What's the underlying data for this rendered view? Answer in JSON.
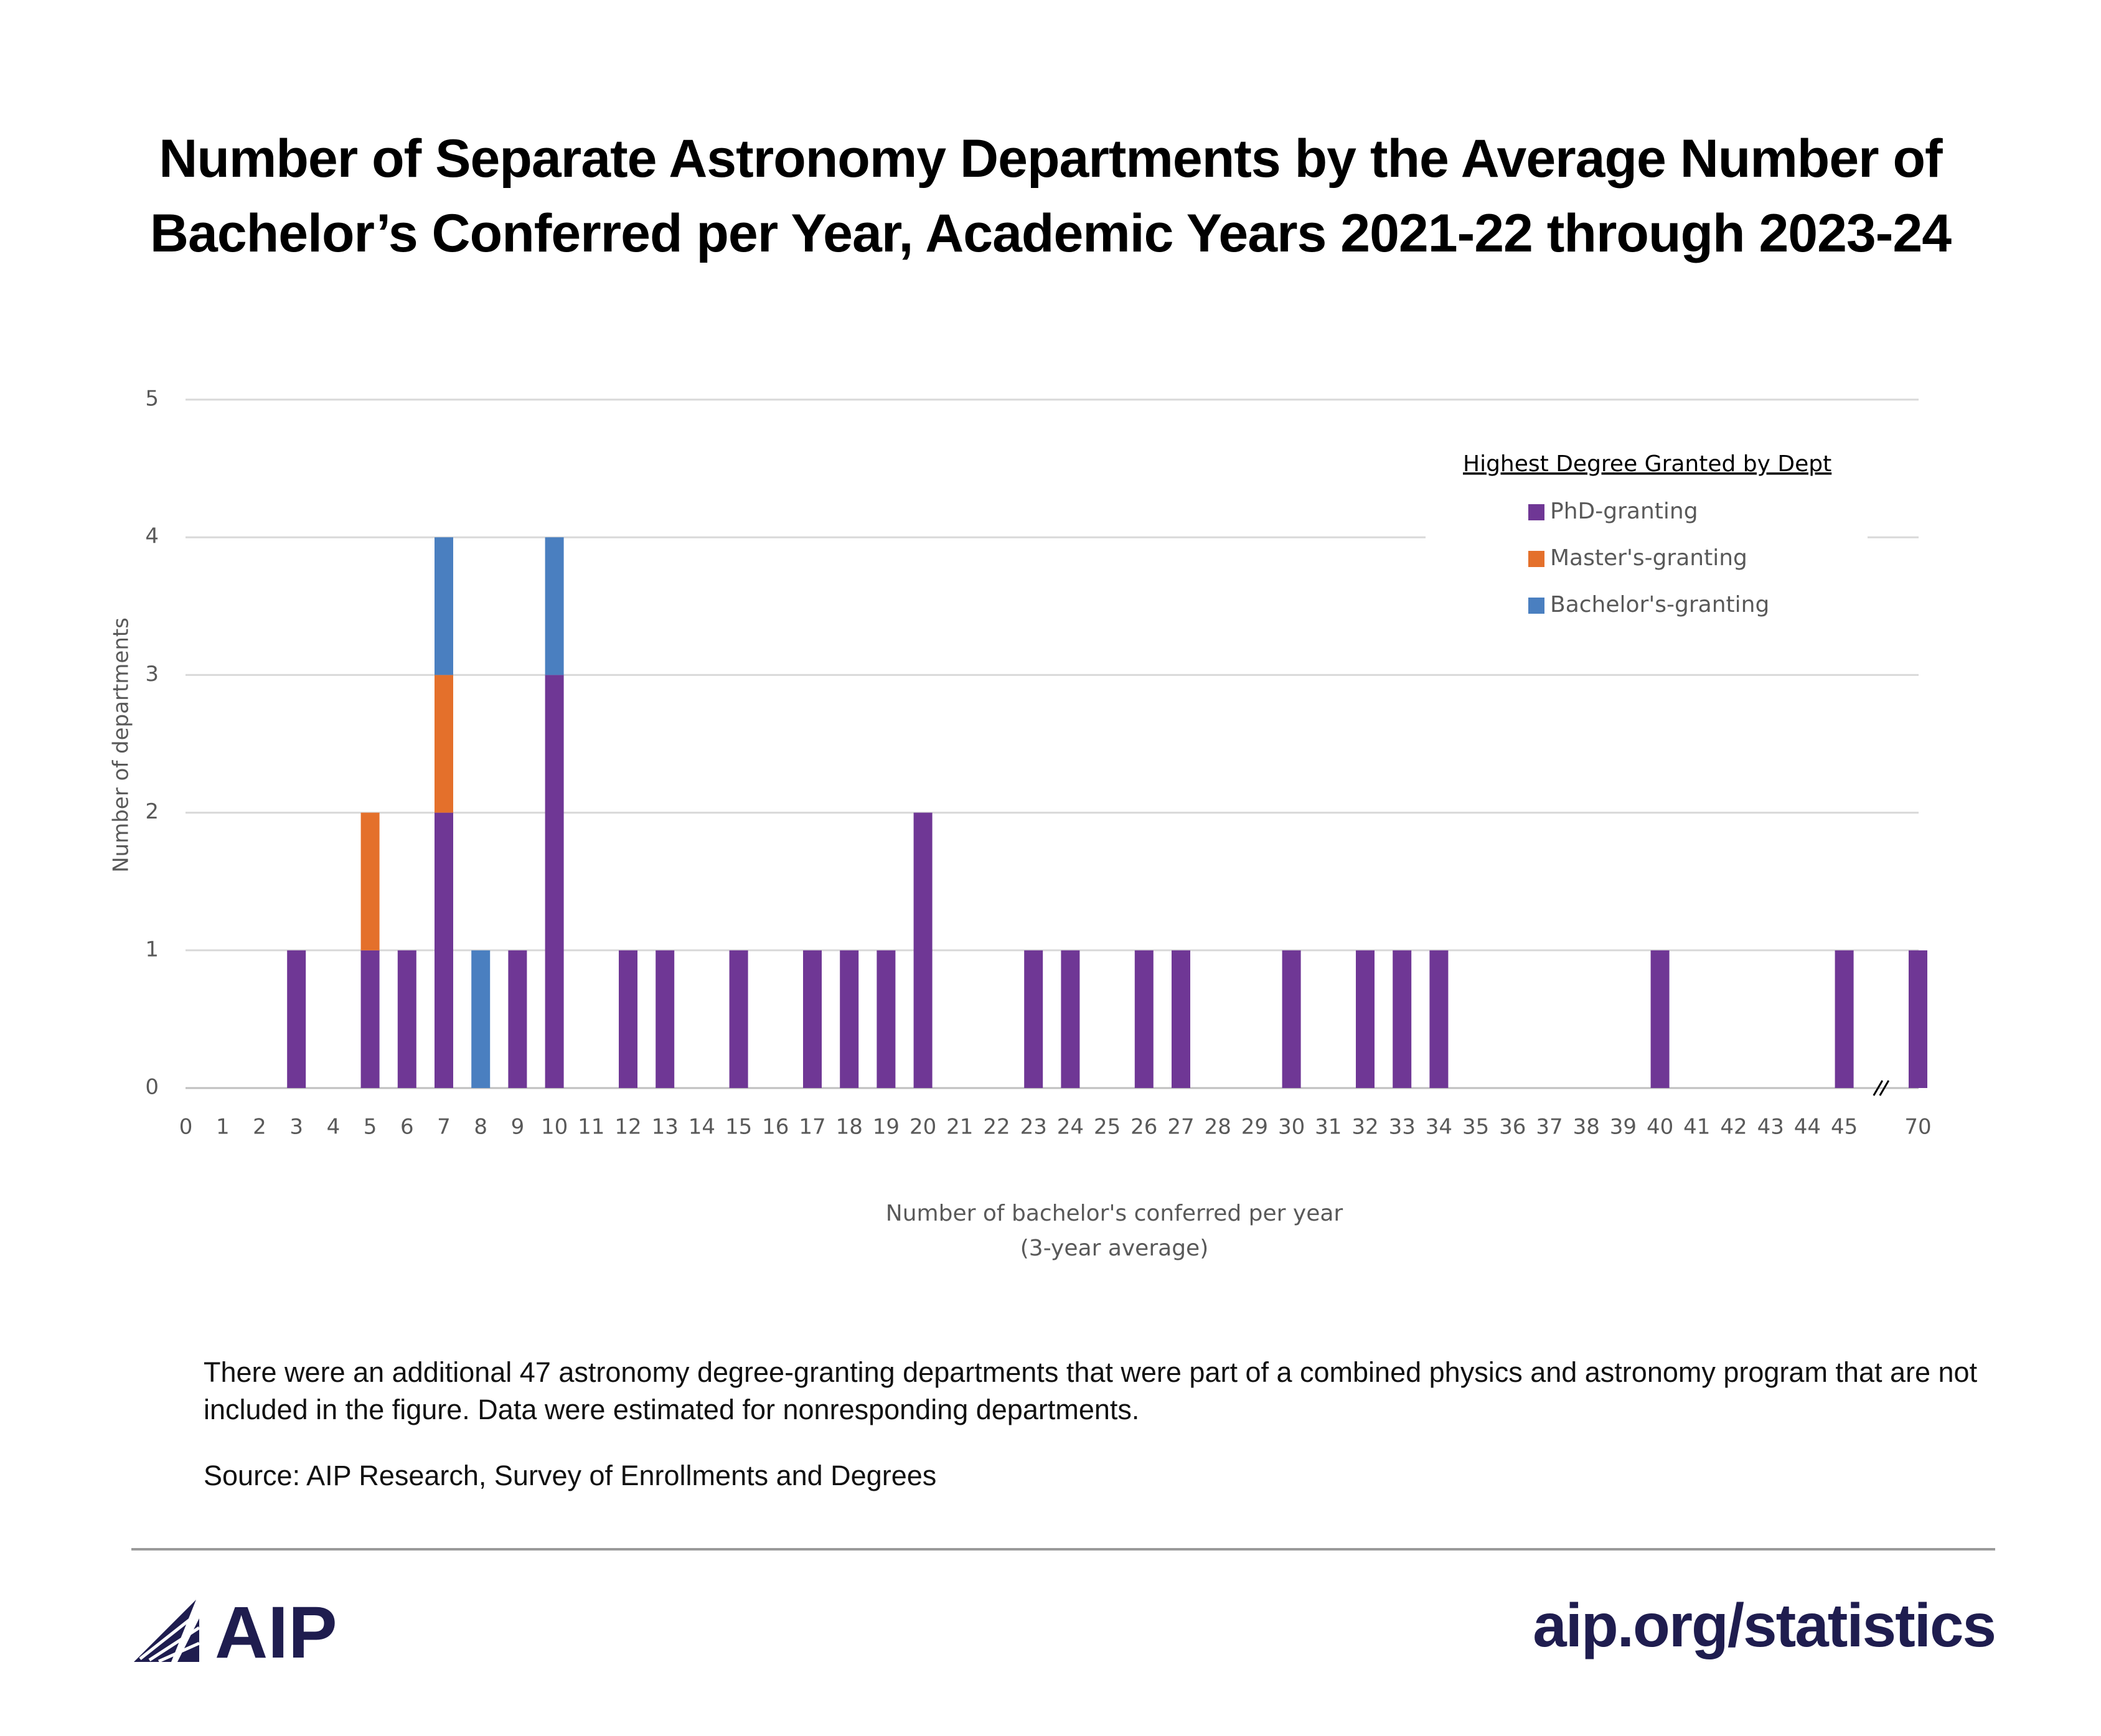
{
  "chart_data": {
    "type": "bar",
    "stacked": true,
    "title": "Number of Separate Astronomy Departments by the Average Number of Bachelor’s Conferred per Year, Academic Years 2021-22 through 2023-24",
    "xlabel": "Number of bachelor's conferred per year",
    "xlabel_note": "(3-year average)",
    "ylabel": "Number of departments",
    "legend_title": "Highest Degree Granted by Dept",
    "legend": "top-right",
    "grid": true,
    "categories": [
      "0",
      "1",
      "2",
      "3",
      "4",
      "5",
      "6",
      "7",
      "8",
      "9",
      "10",
      "11",
      "12",
      "13",
      "14",
      "15",
      "16",
      "17",
      "18",
      "19",
      "20",
      "21",
      "22",
      "23",
      "24",
      "25",
      "26",
      "27",
      "28",
      "29",
      "30",
      "31",
      "32",
      "33",
      "34",
      "35",
      "36",
      "37",
      "38",
      "39",
      "40",
      "41",
      "42",
      "43",
      "44",
      "45",
      null,
      "70"
    ],
    "ylim": [
      0,
      5
    ],
    "yticks": [
      0,
      1,
      2,
      3,
      4,
      5
    ],
    "series": [
      {
        "name": "PhD-granting",
        "color": "#6f3795",
        "values": [
          0,
          0,
          0,
          1,
          0,
          1,
          1,
          2,
          0,
          1,
          3,
          0,
          1,
          1,
          0,
          1,
          0,
          1,
          1,
          1,
          2,
          0,
          0,
          1,
          1,
          0,
          1,
          1,
          0,
          0,
          1,
          0,
          1,
          1,
          1,
          0,
          0,
          0,
          0,
          0,
          1,
          0,
          0,
          0,
          0,
          1,
          null,
          1
        ]
      },
      {
        "name": "Master's-granting",
        "color": "#e4702b",
        "values": [
          0,
          0,
          0,
          0,
          0,
          1,
          0,
          1,
          0,
          0,
          0,
          0,
          0,
          0,
          0,
          0,
          0,
          0,
          0,
          0,
          0,
          0,
          0,
          0,
          0,
          0,
          0,
          0,
          0,
          0,
          0,
          0,
          0,
          0,
          0,
          0,
          0,
          0,
          0,
          0,
          0,
          0,
          0,
          0,
          0,
          0,
          null,
          0
        ]
      },
      {
        "name": "Bachelor's-granting",
        "color": "#4a7fc0",
        "values": [
          0,
          0,
          0,
          0,
          0,
          0,
          0,
          1,
          1,
          0,
          1,
          0,
          0,
          0,
          0,
          0,
          0,
          0,
          0,
          0,
          0,
          0,
          0,
          0,
          0,
          0,
          0,
          0,
          0,
          0,
          0,
          0,
          0,
          0,
          0,
          0,
          0,
          0,
          0,
          0,
          0,
          0,
          0,
          0,
          0,
          0,
          null,
          0
        ]
      }
    ]
  },
  "notes": "There were an additional 47 astronomy degree-granting departments that were part of a combined physics and astronomy program that are not included in the figure. Data were estimated for nonresponding departments.",
  "source": "Source: AIP Research, Survey of Enrollments and Degrees",
  "footer": {
    "logo": "AIP",
    "url": "aip.org/statistics"
  }
}
